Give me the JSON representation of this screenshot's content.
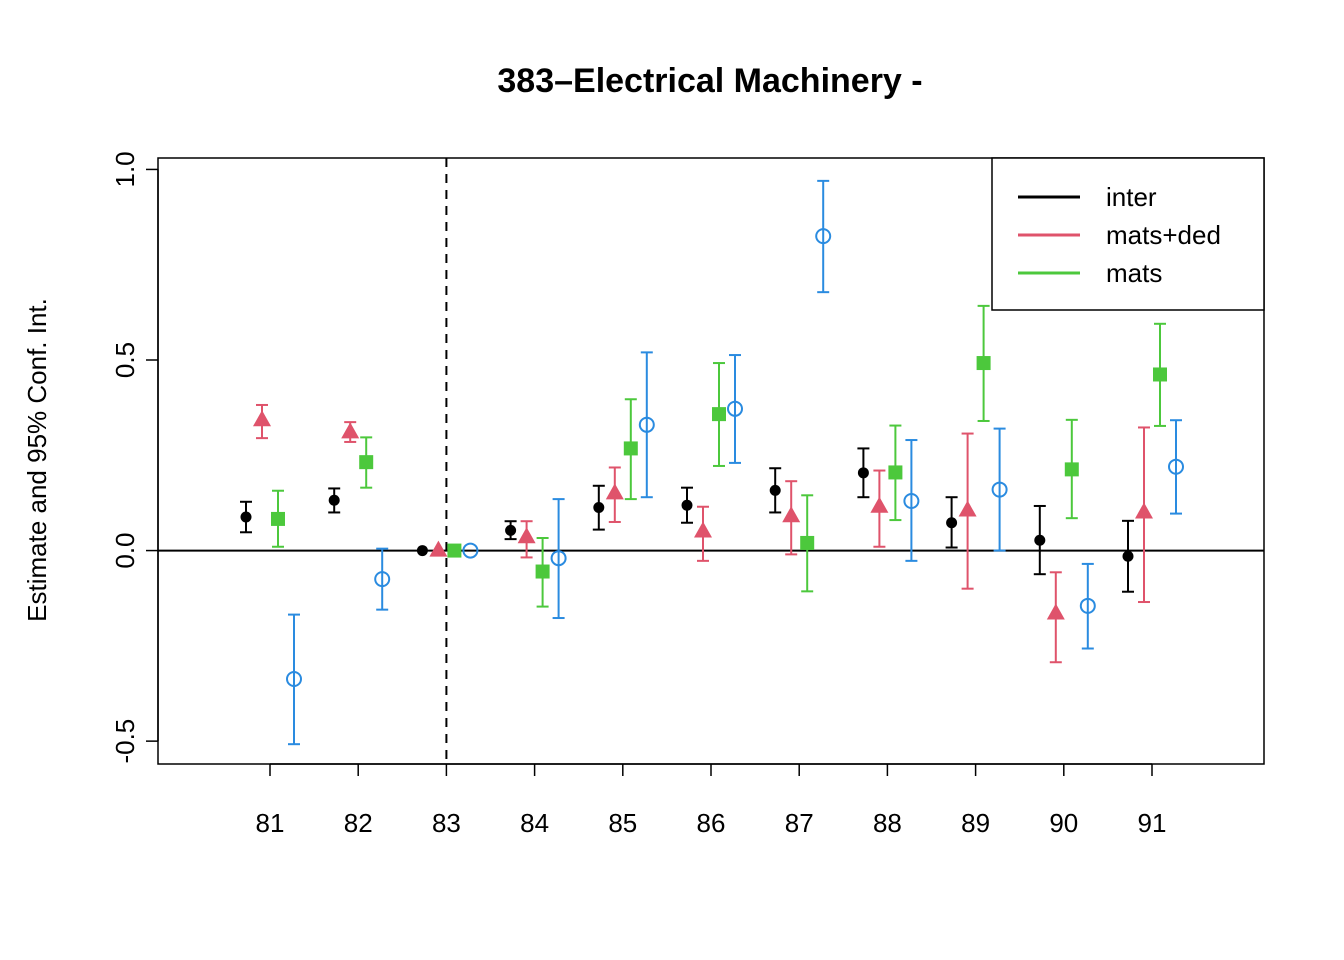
{
  "chart_data": {
    "type": "scatter",
    "title": "383–Electrical Machinery -",
    "xlabel": "",
    "ylabel": "Estimate and 95% Conf. Int.",
    "categories": [
      "81",
      "82",
      "83",
      "84",
      "85",
      "86",
      "87",
      "88",
      "89",
      "90",
      "91"
    ],
    "ylim": [
      -0.56,
      1.03
    ],
    "yticks": [
      "-0.5",
      "0.0",
      "0.5",
      "1.0"
    ],
    "ytick_values": [
      -0.5,
      0.0,
      0.5,
      1.0
    ],
    "reference_line": {
      "y": 0.0,
      "style": "solid"
    },
    "vertical_marker": {
      "category": "83",
      "style": "dashed"
    },
    "legend": {
      "position": "top-right",
      "entries": [
        "inter",
        "mats+ded",
        "mats"
      ]
    },
    "series": [
      {
        "name": "inter",
        "color": "#000000",
        "marker": "filled-circle",
        "in_legend": true,
        "estimates": [
          0.088,
          0.132,
          0.0,
          0.053,
          0.113,
          0.119,
          0.158,
          0.204,
          0.073,
          0.027,
          -0.015
        ],
        "lower": [
          0.048,
          0.1,
          0.0,
          0.03,
          0.055,
          0.073,
          0.1,
          0.14,
          0.008,
          -0.062,
          -0.108
        ],
        "upper": [
          0.128,
          0.163,
          0.0,
          0.077,
          0.17,
          0.165,
          0.216,
          0.268,
          0.14,
          0.117,
          0.078
        ]
      },
      {
        "name": "mats+ded",
        "color": "#DF536B",
        "marker": "filled-triangle",
        "in_legend": true,
        "estimates": [
          0.342,
          0.31,
          0.0,
          0.035,
          0.15,
          0.05,
          0.09,
          0.115,
          0.105,
          -0.165,
          0.1
        ],
        "lower": [
          0.295,
          0.285,
          0.0,
          -0.018,
          0.075,
          -0.027,
          -0.01,
          0.01,
          -0.1,
          -0.293,
          -0.135
        ],
        "upper": [
          0.382,
          0.337,
          0.0,
          0.077,
          0.218,
          0.115,
          0.182,
          0.21,
          0.307,
          -0.057,
          0.323
        ]
      },
      {
        "name": "mats",
        "color": "#4CC83C",
        "marker": "filled-square",
        "in_legend": true,
        "estimates": [
          0.083,
          0.232,
          0.0,
          -0.055,
          0.268,
          0.358,
          0.02,
          0.205,
          0.492,
          0.213,
          0.462
        ],
        "lower": [
          0.01,
          0.165,
          0.0,
          -0.147,
          0.135,
          0.222,
          -0.107,
          0.08,
          0.34,
          0.085,
          0.327
        ],
        "upper": [
          0.157,
          0.297,
          0.0,
          0.033,
          0.397,
          0.492,
          0.145,
          0.328,
          0.642,
          0.343,
          0.595
        ]
      },
      {
        "name": "",
        "color": "#2A8BE0",
        "marker": "open-circle",
        "in_legend": false,
        "estimates": [
          -0.337,
          -0.075,
          0.0,
          -0.02,
          0.33,
          0.372,
          0.825,
          0.13,
          0.16,
          -0.145,
          0.22
        ],
        "lower": [
          -0.508,
          -0.155,
          0.0,
          -0.177,
          0.14,
          0.23,
          0.678,
          -0.027,
          0.0,
          -0.257,
          0.097
        ],
        "upper": [
          -0.168,
          0.005,
          0.0,
          0.135,
          0.52,
          0.513,
          0.97,
          0.29,
          0.32,
          -0.035,
          0.342
        ]
      }
    ]
  }
}
